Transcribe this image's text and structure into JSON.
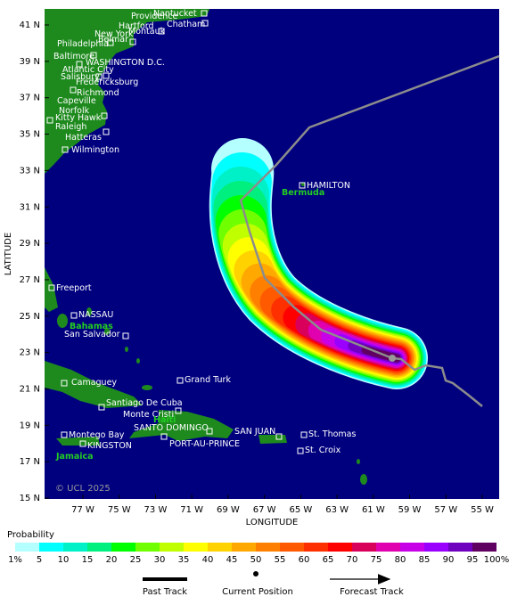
{
  "axes": {
    "ylabel": "LATITUDE",
    "xlabel": "LONGITUDE",
    "lat_ticks": [
      "41 N",
      "39 N",
      "37 N",
      "35 N",
      "33 N",
      "31 N",
      "29 N",
      "27 N",
      "25 N",
      "23 N",
      "21 N",
      "19 N",
      "17 N",
      "15 N"
    ],
    "lon_ticks": [
      "77 W",
      "75 W",
      "73 W",
      "71 W",
      "69 W",
      "67 W",
      "65 W",
      "63 W",
      "61 W",
      "59 W",
      "57 W",
      "55 W"
    ]
  },
  "cities": [
    "Providence",
    "Nantucket",
    "Chatham",
    "Hartford",
    "Montauk",
    "New York",
    "Belmar",
    "Philadelphia",
    "Baltimore",
    "WASHINGTON D.C.",
    "Atlantic City",
    "Salisbury",
    "Fredericksburg",
    "Richmond",
    "Capeville",
    "Norfolk",
    "Kitty Hawk",
    "Raleigh",
    "Hatteras",
    "Wilmington",
    "HAMILTON",
    "Freeport",
    "NASSAU",
    "San Salvador",
    "Grand Turk",
    "Camaguey",
    "Santiago De Cuba",
    "Monte Cristi",
    "SANTO DOMINGO",
    "SAN JUAN",
    "St. Thomas",
    "Montego Bay",
    "PORT-AU-PRINCE",
    "KINGSTON",
    "St. Croix"
  ],
  "regions": [
    "Bermuda",
    "Bahamas",
    "Haiti",
    "Jamaica"
  ],
  "copyright": "© UCL 2025",
  "colorbar": {
    "title": "Probability",
    "labels": [
      "1%",
      "5",
      "10",
      "15",
      "20",
      "25",
      "30",
      "35",
      "40",
      "45",
      "50",
      "55",
      "60",
      "65",
      "70",
      "75",
      "80",
      "85",
      "90",
      "95",
      "100%"
    ],
    "colors": [
      "#b4ffff",
      "#00ffff",
      "#00f0c8",
      "#00f080",
      "#00ff00",
      "#70ff00",
      "#c0ff00",
      "#ffff00",
      "#ffd200",
      "#ffa800",
      "#ff8000",
      "#ff5a00",
      "#ff3000",
      "#ff0000",
      "#d8005a",
      "#e000b0",
      "#c800e8",
      "#9a00ff",
      "#7000c0",
      "#600060"
    ]
  },
  "legend": [
    "Past Track",
    "Current Position",
    "Forecast Track"
  ]
}
